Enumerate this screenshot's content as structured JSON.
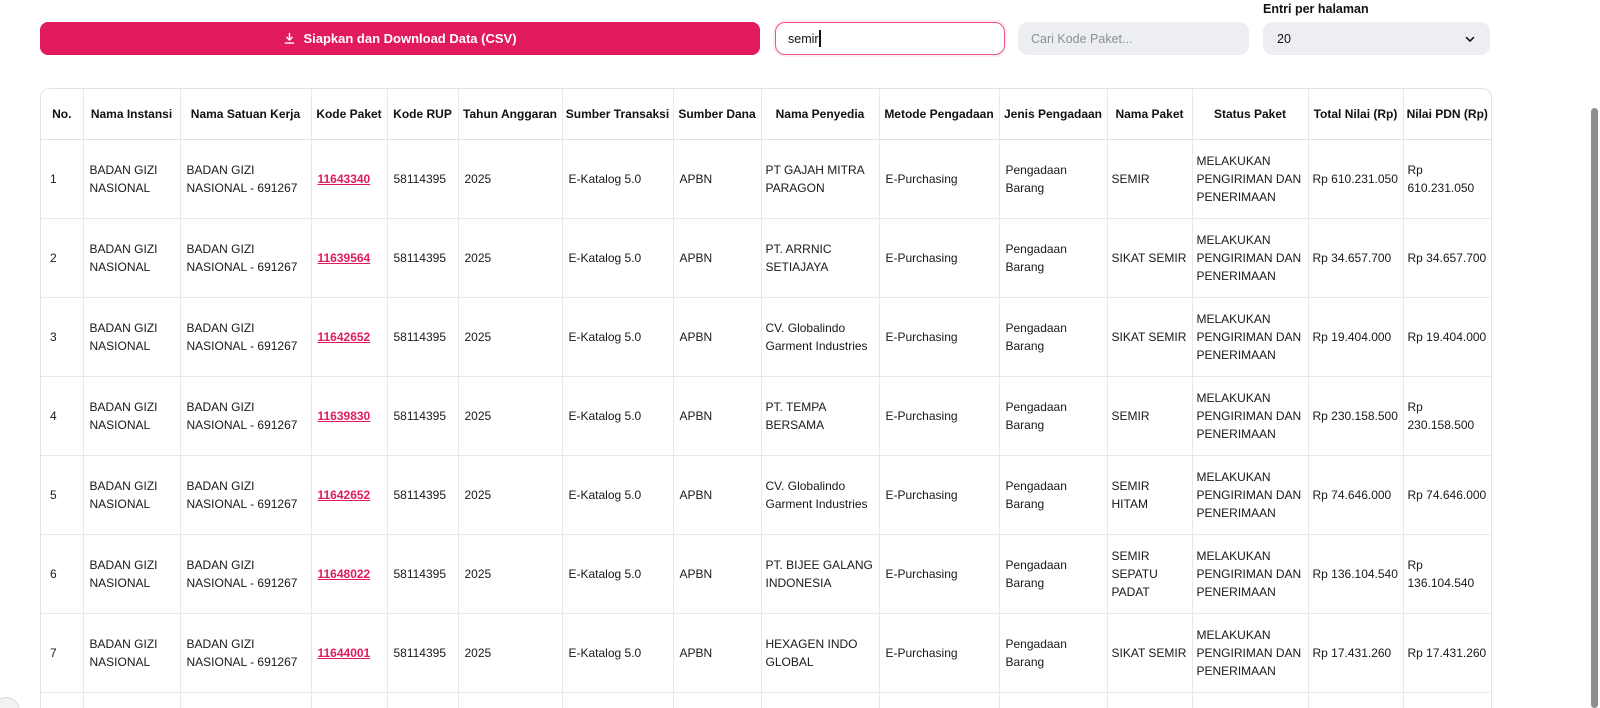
{
  "toolbar": {
    "download_label": "Siapkan dan Download Data (CSV)",
    "search_value": "semir",
    "kode_placeholder": "Cari Kode Paket...",
    "entries_label": "Entri per halaman",
    "entries_value": "20"
  },
  "icons": {
    "download": "download-icon",
    "chevron": "chevron-down-icon"
  },
  "colors": {
    "accent_pink": "#E11B5B",
    "focus_border_pink": "#E8568A",
    "input_gray": "#ECEEF1",
    "table_border_gray": "#E7E9ED",
    "scrollbar_gray": "#8F8F8F"
  },
  "table": {
    "columns": [
      "No.",
      "Nama Instansi",
      "Nama Satuan Kerja",
      "Kode Paket",
      "Kode RUP",
      "Tahun Anggaran",
      "Sumber Transaksi",
      "Sumber Dana",
      "Nama Penyedia",
      "Metode Pengadaan",
      "Jenis Pengadaan",
      "Nama Paket",
      "Status Paket",
      "Total Nilai (Rp)",
      "Nilai PDN (Rp)"
    ],
    "fields": [
      "no",
      "nama_instansi",
      "nama_satuan_kerja",
      "kode_paket",
      "kode_rup",
      "tahun_anggaran",
      "sumber_transaksi",
      "sumber_dana",
      "nama_penyedia",
      "metode_pengadaan",
      "jenis_pengadaan",
      "nama_paket",
      "status_paket",
      "total_nilai",
      "nilai_pdn"
    ],
    "rows": [
      {
        "no": "1",
        "nama_instansi": "BADAN GIZI NASIONAL",
        "nama_satuan_kerja": "BADAN GIZI NASIONAL - 691267",
        "kode_paket": "11643340",
        "kode_rup": "58114395",
        "tahun_anggaran": "2025",
        "sumber_transaksi": "E-Katalog 5.0",
        "sumber_dana": "APBN",
        "nama_penyedia": "PT GAJAH MITRA PARAGON",
        "metode_pengadaan": "E-Purchasing",
        "jenis_pengadaan": "Pengadaan Barang",
        "nama_paket": "SEMIR",
        "status_paket": "MELAKUKAN PENGIRIMAN DAN PENERIMAAN",
        "total_nilai": "Rp 610.231.050",
        "nilai_pdn": "Rp 610.231.050"
      },
      {
        "no": "2",
        "nama_instansi": "BADAN GIZI NASIONAL",
        "nama_satuan_kerja": "BADAN GIZI NASIONAL - 691267",
        "kode_paket": "11639564",
        "kode_rup": "58114395",
        "tahun_anggaran": "2025",
        "sumber_transaksi": "E-Katalog 5.0",
        "sumber_dana": "APBN",
        "nama_penyedia": "PT. ARRNIC SETIAJAYA",
        "metode_pengadaan": "E-Purchasing",
        "jenis_pengadaan": "Pengadaan Barang",
        "nama_paket": "SIKAT SEMIR",
        "status_paket": "MELAKUKAN PENGIRIMAN DAN PENERIMAAN",
        "total_nilai": "Rp 34.657.700",
        "nilai_pdn": "Rp 34.657.700"
      },
      {
        "no": "3",
        "nama_instansi": "BADAN GIZI NASIONAL",
        "nama_satuan_kerja": "BADAN GIZI NASIONAL - 691267",
        "kode_paket": "11642652",
        "kode_rup": "58114395",
        "tahun_anggaran": "2025",
        "sumber_transaksi": "E-Katalog 5.0",
        "sumber_dana": "APBN",
        "nama_penyedia": "CV. Globalindo Garment Industries",
        "metode_pengadaan": "E-Purchasing",
        "jenis_pengadaan": "Pengadaan Barang",
        "nama_paket": "SIKAT SEMIR",
        "status_paket": "MELAKUKAN PENGIRIMAN DAN PENERIMAAN",
        "total_nilai": "Rp 19.404.000",
        "nilai_pdn": "Rp 19.404.000"
      },
      {
        "no": "4",
        "nama_instansi": "BADAN GIZI NASIONAL",
        "nama_satuan_kerja": "BADAN GIZI NASIONAL - 691267",
        "kode_paket": "11639830",
        "kode_rup": "58114395",
        "tahun_anggaran": "2025",
        "sumber_transaksi": "E-Katalog 5.0",
        "sumber_dana": "APBN",
        "nama_penyedia": "PT. TEMPA BERSAMA",
        "metode_pengadaan": "E-Purchasing",
        "jenis_pengadaan": "Pengadaan Barang",
        "nama_paket": "SEMIR",
        "status_paket": "MELAKUKAN PENGIRIMAN DAN PENERIMAAN",
        "total_nilai": "Rp 230.158.500",
        "nilai_pdn": "Rp 230.158.500"
      },
      {
        "no": "5",
        "nama_instansi": "BADAN GIZI NASIONAL",
        "nama_satuan_kerja": "BADAN GIZI NASIONAL - 691267",
        "kode_paket": "11642652",
        "kode_rup": "58114395",
        "tahun_anggaran": "2025",
        "sumber_transaksi": "E-Katalog 5.0",
        "sumber_dana": "APBN",
        "nama_penyedia": "CV. Globalindo Garment Industries",
        "metode_pengadaan": "E-Purchasing",
        "jenis_pengadaan": "Pengadaan Barang",
        "nama_paket": "SEMIR HITAM",
        "status_paket": "MELAKUKAN PENGIRIMAN DAN PENERIMAAN",
        "total_nilai": "Rp 74.646.000",
        "nilai_pdn": "Rp 74.646.000"
      },
      {
        "no": "6",
        "nama_instansi": "BADAN GIZI NASIONAL",
        "nama_satuan_kerja": "BADAN GIZI NASIONAL - 691267",
        "kode_paket": "11648022",
        "kode_rup": "58114395",
        "tahun_anggaran": "2025",
        "sumber_transaksi": "E-Katalog 5.0",
        "sumber_dana": "APBN",
        "nama_penyedia": "PT. BIJEE GALANG INDONESIA",
        "metode_pengadaan": "E-Purchasing",
        "jenis_pengadaan": "Pengadaan Barang",
        "nama_paket": "SEMIR SEPATU PADAT",
        "status_paket": "MELAKUKAN PENGIRIMAN DAN PENERIMAAN",
        "total_nilai": "Rp 136.104.540",
        "nilai_pdn": "Rp 136.104.540"
      },
      {
        "no": "7",
        "nama_instansi": "BADAN GIZI NASIONAL",
        "nama_satuan_kerja": "BADAN GIZI NASIONAL - 691267",
        "kode_paket": "11644001",
        "kode_rup": "58114395",
        "tahun_anggaran": "2025",
        "sumber_transaksi": "E-Katalog 5.0",
        "sumber_dana": "APBN",
        "nama_penyedia": "HEXAGEN INDO GLOBAL",
        "metode_pengadaan": "E-Purchasing",
        "jenis_pengadaan": "Pengadaan Barang",
        "nama_paket": "SIKAT SEMIR",
        "status_paket": "MELAKUKAN PENGIRIMAN DAN PENERIMAAN",
        "total_nilai": "Rp 17.431.260",
        "nilai_pdn": "Rp 17.431.260"
      }
    ]
  }
}
